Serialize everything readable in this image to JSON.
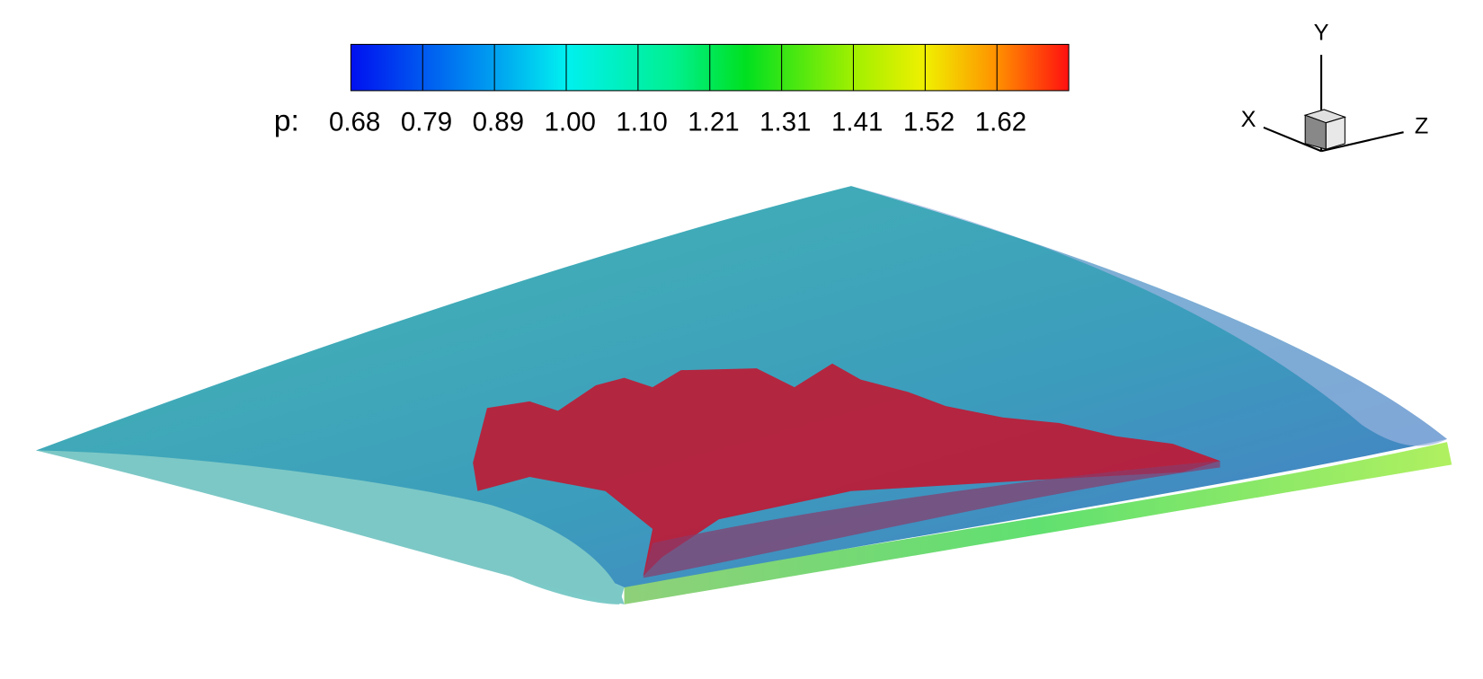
{
  "colorbar": {
    "variable": "p:",
    "levels": [
      "0.68",
      "0.79",
      "0.89",
      "1.00",
      "1.10",
      "1.21",
      "1.31",
      "1.41",
      "1.52",
      "1.62"
    ]
  },
  "axes_triad": {
    "x": "X",
    "y": "Y",
    "z": "Z"
  }
}
